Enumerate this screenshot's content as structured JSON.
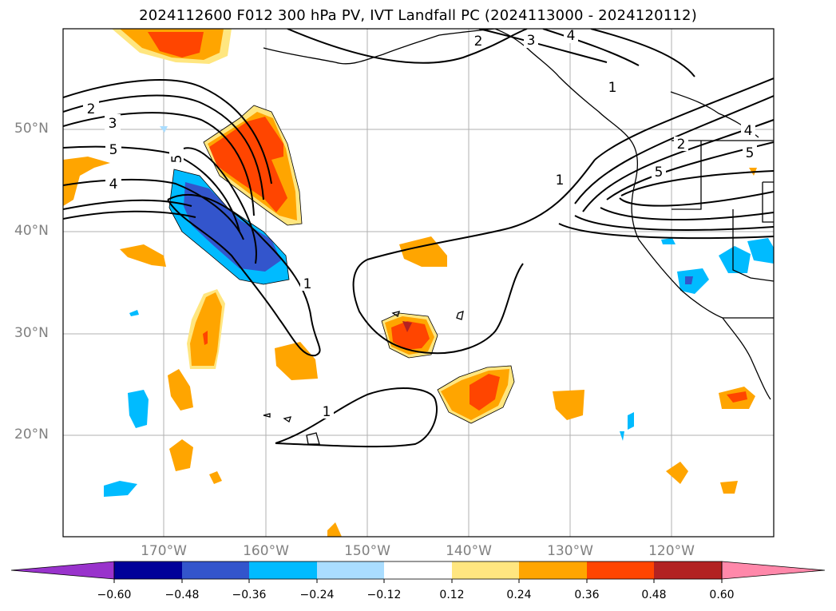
{
  "title": "2024112600 F012 300 hPa PV, IVT Landfall PC (2024113000 - 2024120112)",
  "lat_labels": [
    "50°N",
    "40°N",
    "30°N",
    "20°N"
  ],
  "lon_labels": [
    "170°W",
    "160°W",
    "150°W",
    "140°W",
    "130°W",
    "120°W"
  ],
  "colorbar": {
    "ticks": [
      "−0.60",
      "−0.48",
      "−0.36",
      "−0.24",
      "−0.12",
      "0.12",
      "0.24",
      "0.36",
      "0.48",
      "0.60"
    ],
    "colors": [
      "#9933cc",
      "#000099",
      "#3355cc",
      "#00bbff",
      "#aaddff",
      "#ffffff",
      "#ffe680",
      "#ffa500",
      "#ff4500",
      "#b22222",
      "#ff88aa"
    ]
  },
  "contour_labels": [
    "2",
    "3",
    "5",
    "4",
    "5",
    "1",
    "1",
    "1",
    "1",
    "2",
    "5",
    "4",
    "5",
    "2",
    "4",
    "3"
  ]
}
